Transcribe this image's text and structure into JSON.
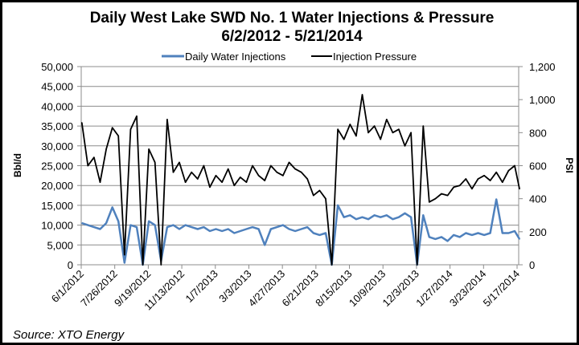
{
  "chart_data": {
    "type": "line",
    "title": "Daily West Lake SWD No. 1 Water Injections & Pressure",
    "subtitle": "6/2/2012 - 5/21/2014",
    "ylabel": "Bbl/d",
    "y2label": "PSI",
    "ylim": [
      0,
      50000
    ],
    "y2lim": [
      0,
      1200
    ],
    "yticks": [
      "0",
      "5,000",
      "10,000",
      "15,000",
      "20,000",
      "25,000",
      "30,000",
      "35,000",
      "40,000",
      "45,000",
      "50,000"
    ],
    "y2ticks": [
      "0",
      "200",
      "400",
      "600",
      "800",
      "1,000",
      "1,200"
    ],
    "xticks": [
      "6/1/2012",
      "7/26/2012",
      "9/19/2012",
      "11/13/2012",
      "1/7/2013",
      "3/3/2013",
      "4/27/2013",
      "6/21/2013",
      "8/15/2013",
      "10/9/2013",
      "12/3/2013",
      "1/27/2014",
      "3/23/2014",
      "5/17/2014"
    ],
    "grid": true,
    "legend": "top",
    "x": [
      "2012-06-02",
      "2012-06-12",
      "2012-06-22",
      "2012-07-02",
      "2012-07-12",
      "2012-07-22",
      "2012-08-01",
      "2012-08-11",
      "2012-08-21",
      "2012-08-31",
      "2012-09-10",
      "2012-09-20",
      "2012-09-30",
      "2012-10-10",
      "2012-10-20",
      "2012-10-30",
      "2012-11-09",
      "2012-11-19",
      "2012-11-29",
      "2012-12-09",
      "2012-12-19",
      "2012-12-29",
      "2013-01-08",
      "2013-01-18",
      "2013-01-28",
      "2013-02-07",
      "2013-02-17",
      "2013-02-27",
      "2013-03-09",
      "2013-03-19",
      "2013-03-29",
      "2013-04-08",
      "2013-04-18",
      "2013-04-28",
      "2013-05-08",
      "2013-05-18",
      "2013-05-28",
      "2013-06-07",
      "2013-06-17",
      "2013-06-27",
      "2013-07-07",
      "2013-07-17",
      "2013-07-27",
      "2013-08-06",
      "2013-08-16",
      "2013-08-26",
      "2013-09-05",
      "2013-09-15",
      "2013-09-25",
      "2013-10-05",
      "2013-10-15",
      "2013-10-25",
      "2013-11-04",
      "2013-11-14",
      "2013-11-24",
      "2013-12-04",
      "2013-12-14",
      "2013-12-24",
      "2014-01-03",
      "2014-01-13",
      "2014-01-23",
      "2014-02-02",
      "2014-02-12",
      "2014-02-22",
      "2014-03-04",
      "2014-03-14",
      "2014-03-24",
      "2014-04-03",
      "2014-04-13",
      "2014-04-23",
      "2014-05-03",
      "2014-05-13",
      "2014-05-21"
    ],
    "series": [
      {
        "name": "Daily Water Injections",
        "axis": "left",
        "color": "#4f81bd",
        "values": [
          10500,
          10000,
          9500,
          9000,
          10500,
          14500,
          11000,
          500,
          10000,
          9500,
          0,
          11000,
          10000,
          1000,
          9500,
          10000,
          9000,
          10000,
          9500,
          9000,
          9500,
          8500,
          9000,
          8500,
          9000,
          8000,
          8500,
          9000,
          9500,
          9000,
          5000,
          9000,
          9500,
          10000,
          9000,
          8500,
          9000,
          9500,
          8000,
          7500,
          8000,
          0,
          15000,
          12000,
          12500,
          11500,
          12000,
          11500,
          12500,
          12000,
          12500,
          11500,
          12000,
          13000,
          12000,
          0,
          12500,
          7000,
          6500,
          7000,
          6000,
          7500,
          7000,
          8000,
          7500,
          8000,
          7500,
          8000,
          16500,
          8000,
          8000,
          8500,
          6500
        ]
      },
      {
        "name": "Injection Pressure",
        "axis": "right",
        "color": "#000000",
        "values": [
          860,
          600,
          650,
          500,
          700,
          830,
          780,
          60,
          820,
          900,
          0,
          700,
          620,
          0,
          880,
          560,
          620,
          500,
          560,
          520,
          600,
          470,
          540,
          500,
          580,
          480,
          530,
          500,
          600,
          540,
          510,
          600,
          560,
          540,
          620,
          580,
          560,
          520,
          420,
          450,
          400,
          0,
          820,
          760,
          850,
          780,
          1030,
          800,
          840,
          760,
          880,
          800,
          820,
          720,
          800,
          0,
          840,
          380,
          400,
          430,
          420,
          470,
          480,
          520,
          460,
          520,
          540,
          510,
          560,
          500,
          570,
          600,
          460
        ]
      }
    ]
  },
  "source": "Source: XTO Energy"
}
